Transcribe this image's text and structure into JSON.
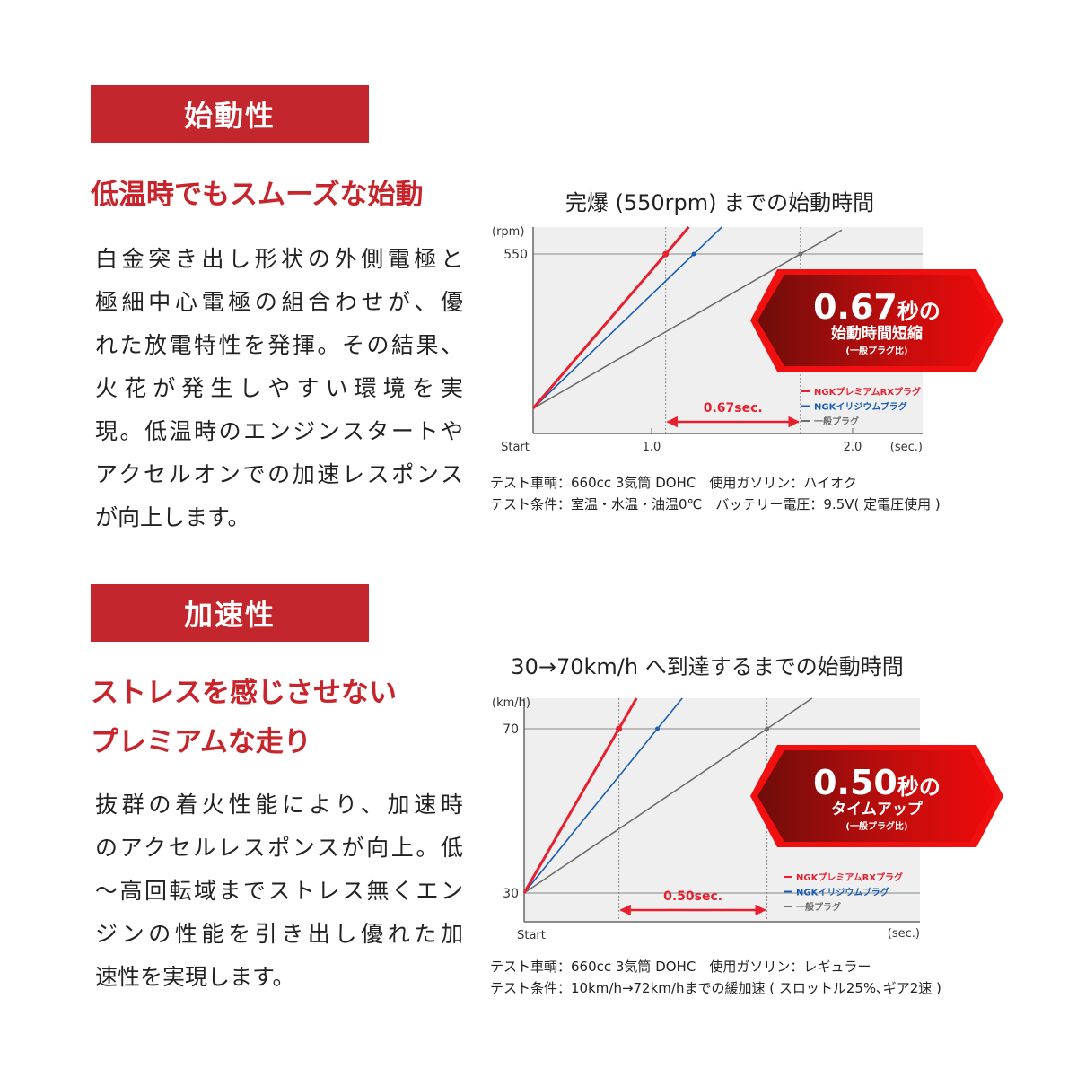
{
  "section1": {
    "header": "始動性",
    "heading": [
      "低温時でもスムーズな始動"
    ],
    "body": [
      "白金突き出し形状の外側電極と",
      "極細中心電極の組合わせが、優",
      "れた放電特性を発揮。その結果、",
      "火花が発生しやすい環境を実",
      "現。低温時のエンジンスタートや",
      "アクセルオンでの加速レスポンス",
      "が向上します。"
    ],
    "notes": [
      "テスト車輌：660cc 3気筒 DOHC　使用ガソリン：ハイオク",
      "テスト条件：室温・水温・油温0℃　バッテリー電圧：9.5V( 定電圧使用 )"
    ]
  },
  "section2": {
    "header": "加速性",
    "heading": [
      "ストレスを感じさせない",
      "プレミアムな走り"
    ],
    "body": [
      "抜群の着火性能により、加速時",
      "のアクセルレスポンスが向上。低",
      "～高回転域までストレス無くエン",
      "ジンの性能を引き出し優れた加",
      "速性を実現します。"
    ],
    "notes": [
      "テスト車輌：660cc 3気筒 DOHC　使用ガソリン：レギュラー",
      "テスト条件：10km/h→72km/hまでの緩加速 ( スロットル25%､ギア2速 )"
    ]
  },
  "colors": {
    "red": "#e8202e",
    "blue": "#1a5fb4",
    "gray": "#6e6e6e",
    "header": "#c4262e"
  },
  "chart_data": [
    {
      "type": "line",
      "title": "完爆 (550rpm) までの始動時間",
      "ylabel": "(rpm)",
      "xlabel": "(sec.)",
      "x_start_label": "Start",
      "x_ticks": [
        1.0,
        2.0
      ],
      "x_tick_labels": [
        "1.0",
        "2.0"
      ],
      "y_ticks": [
        550
      ],
      "y_tick_labels": [
        "550"
      ],
      "grid": false,
      "legend_position": "bottom-right",
      "series": [
        {
          "name": "NGKプレミアムRXプラグ",
          "color_key": "red",
          "reach_time": 1.07
        },
        {
          "name": "NGKイリジウムプラグ",
          "color_key": "blue",
          "reach_time": 1.21
        },
        {
          "name": "一般プラグ",
          "color_key": "gray",
          "reach_time": 1.74
        }
      ],
      "difference_label": "0.67sec.",
      "badge": {
        "big": "0.67",
        "unit": "秒の",
        "line2": "始動時間短縮",
        "line3": "(一般プラグ比)"
      }
    },
    {
      "type": "line",
      "title": "30→70km/h へ到達するまでの始動時間",
      "ylabel": "(km/h)",
      "xlabel": "(sec.)",
      "x_start_label": "Start",
      "y_ticks": [
        30,
        70
      ],
      "y_tick_labels": [
        "30",
        "70"
      ],
      "grid": false,
      "legend_position": "bottom-right",
      "series": [
        {
          "name": "NGKプレミアムRXプラグ",
          "color_key": "red",
          "reach_time": 0.32
        },
        {
          "name": "NGKイリジウムプラグ",
          "color_key": "blue",
          "reach_time": 0.45
        },
        {
          "name": "一般プラグ",
          "color_key": "gray",
          "reach_time": 0.82
        }
      ],
      "difference_label": "0.50sec.",
      "badge": {
        "big": "0.50",
        "unit": "秒の",
        "line2": "タイムアップ",
        "line3": "(一般プラグ比)"
      }
    }
  ]
}
